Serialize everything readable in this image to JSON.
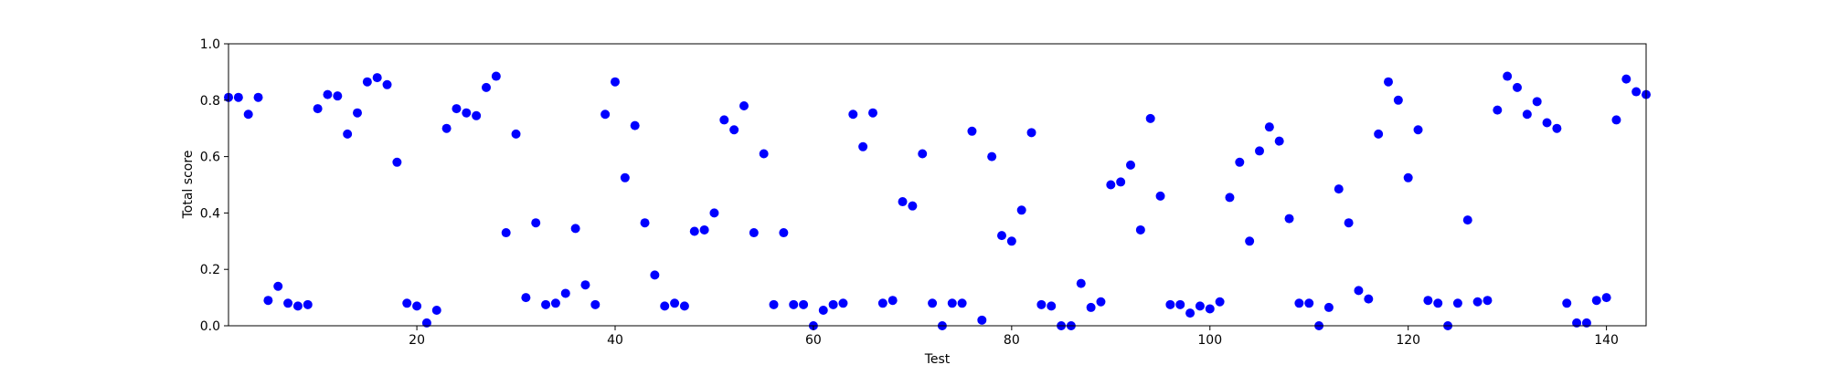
{
  "chart_data": {
    "type": "scatter",
    "xlabel": "Test",
    "ylabel": "Total score",
    "xlim": [
      1,
      144
    ],
    "ylim": [
      0,
      1
    ],
    "xticks": [
      20,
      40,
      60,
      80,
      100,
      120,
      140
    ],
    "xtick_labels": [
      "20",
      "40",
      "60",
      "80",
      "100",
      "120",
      "140"
    ],
    "yticks": [
      0,
      0.2,
      0.4,
      0.6,
      0.8,
      1.0
    ],
    "ytick_labels": [
      "0.0",
      "0.2",
      "0.4",
      "0.6",
      "0.8",
      "1.0"
    ],
    "grid": false,
    "marker_color": "#0000ff",
    "x": [
      1,
      2,
      3,
      4,
      5,
      6,
      7,
      8,
      9,
      10,
      11,
      12,
      13,
      14,
      15,
      16,
      17,
      18,
      19,
      20,
      21,
      22,
      23,
      24,
      25,
      26,
      27,
      28,
      29,
      30,
      31,
      32,
      33,
      34,
      35,
      36,
      37,
      38,
      39,
      40,
      41,
      42,
      43,
      44,
      45,
      46,
      47,
      48,
      49,
      50,
      51,
      52,
      53,
      54,
      55,
      56,
      57,
      58,
      59,
      60,
      61,
      62,
      63,
      64,
      65,
      66,
      67,
      68,
      69,
      70,
      71,
      72,
      73,
      74,
      75,
      76,
      77,
      78,
      79,
      80,
      81,
      82,
      83,
      84,
      85,
      86,
      87,
      88,
      89,
      90,
      91,
      92,
      93,
      94,
      95,
      96,
      97,
      98,
      99,
      100,
      101,
      102,
      103,
      104,
      105,
      106,
      107,
      108,
      109,
      110,
      111,
      112,
      113,
      114,
      115,
      116,
      117,
      118,
      119,
      120,
      121,
      122,
      123,
      124,
      125,
      126,
      127,
      128,
      129,
      130,
      131,
      132,
      133,
      134,
      135,
      136,
      137,
      138,
      139,
      140,
      141,
      142,
      143,
      144
    ],
    "y": [
      0.81,
      0.81,
      0.75,
      0.81,
      0.09,
      0.14,
      0.08,
      0.07,
      0.075,
      0.77,
      0.82,
      0.815,
      0.68,
      0.755,
      0.865,
      0.88,
      0.855,
      0.58,
      0.08,
      0.07,
      0.01,
      0.055,
      0.7,
      0.77,
      0.755,
      0.745,
      0.845,
      0.885,
      0.33,
      0.68,
      0.1,
      0.365,
      0.075,
      0.08,
      0.115,
      0.345,
      0.145,
      0.075,
      0.75,
      0.865,
      0.525,
      0.71,
      0.365,
      0.18,
      0.07,
      0.08,
      0.07,
      0.335,
      0.34,
      0.4,
      0.73,
      0.695,
      0.78,
      0.33,
      0.61,
      0.075,
      0.33,
      0.075,
      0.075,
      0.0,
      0.055,
      0.075,
      0.08,
      0.75,
      0.635,
      0.755,
      0.08,
      0.09,
      0.44,
      0.425,
      0.61,
      0.08,
      0.0,
      0.08,
      0.08,
      0.69,
      0.02,
      0.6,
      0.32,
      0.3,
      0.41,
      0.685,
      0.075,
      0.07,
      0.0,
      0.0,
      0.15,
      0.065,
      0.085,
      0.5,
      0.51,
      0.57,
      0.34,
      0.735,
      0.46,
      0.075,
      0.075,
      0.045,
      0.07,
      0.06,
      0.085,
      0.455,
      0.58,
      0.3,
      0.62,
      0.705,
      0.655,
      0.38,
      0.08,
      0.08,
      0.0,
      0.065,
      0.485,
      0.365,
      0.125,
      0.095,
      0.68,
      0.865,
      0.8,
      0.525,
      0.695,
      0.09,
      0.08,
      0.0,
      0.08,
      0.375,
      0.085,
      0.09,
      0.765,
      0.885,
      0.845,
      0.75,
      0.795,
      0.72,
      0.7,
      0.08,
      0.01,
      0.01,
      0.09,
      0.1,
      0.73,
      0.875,
      0.83,
      0.82
    ]
  }
}
